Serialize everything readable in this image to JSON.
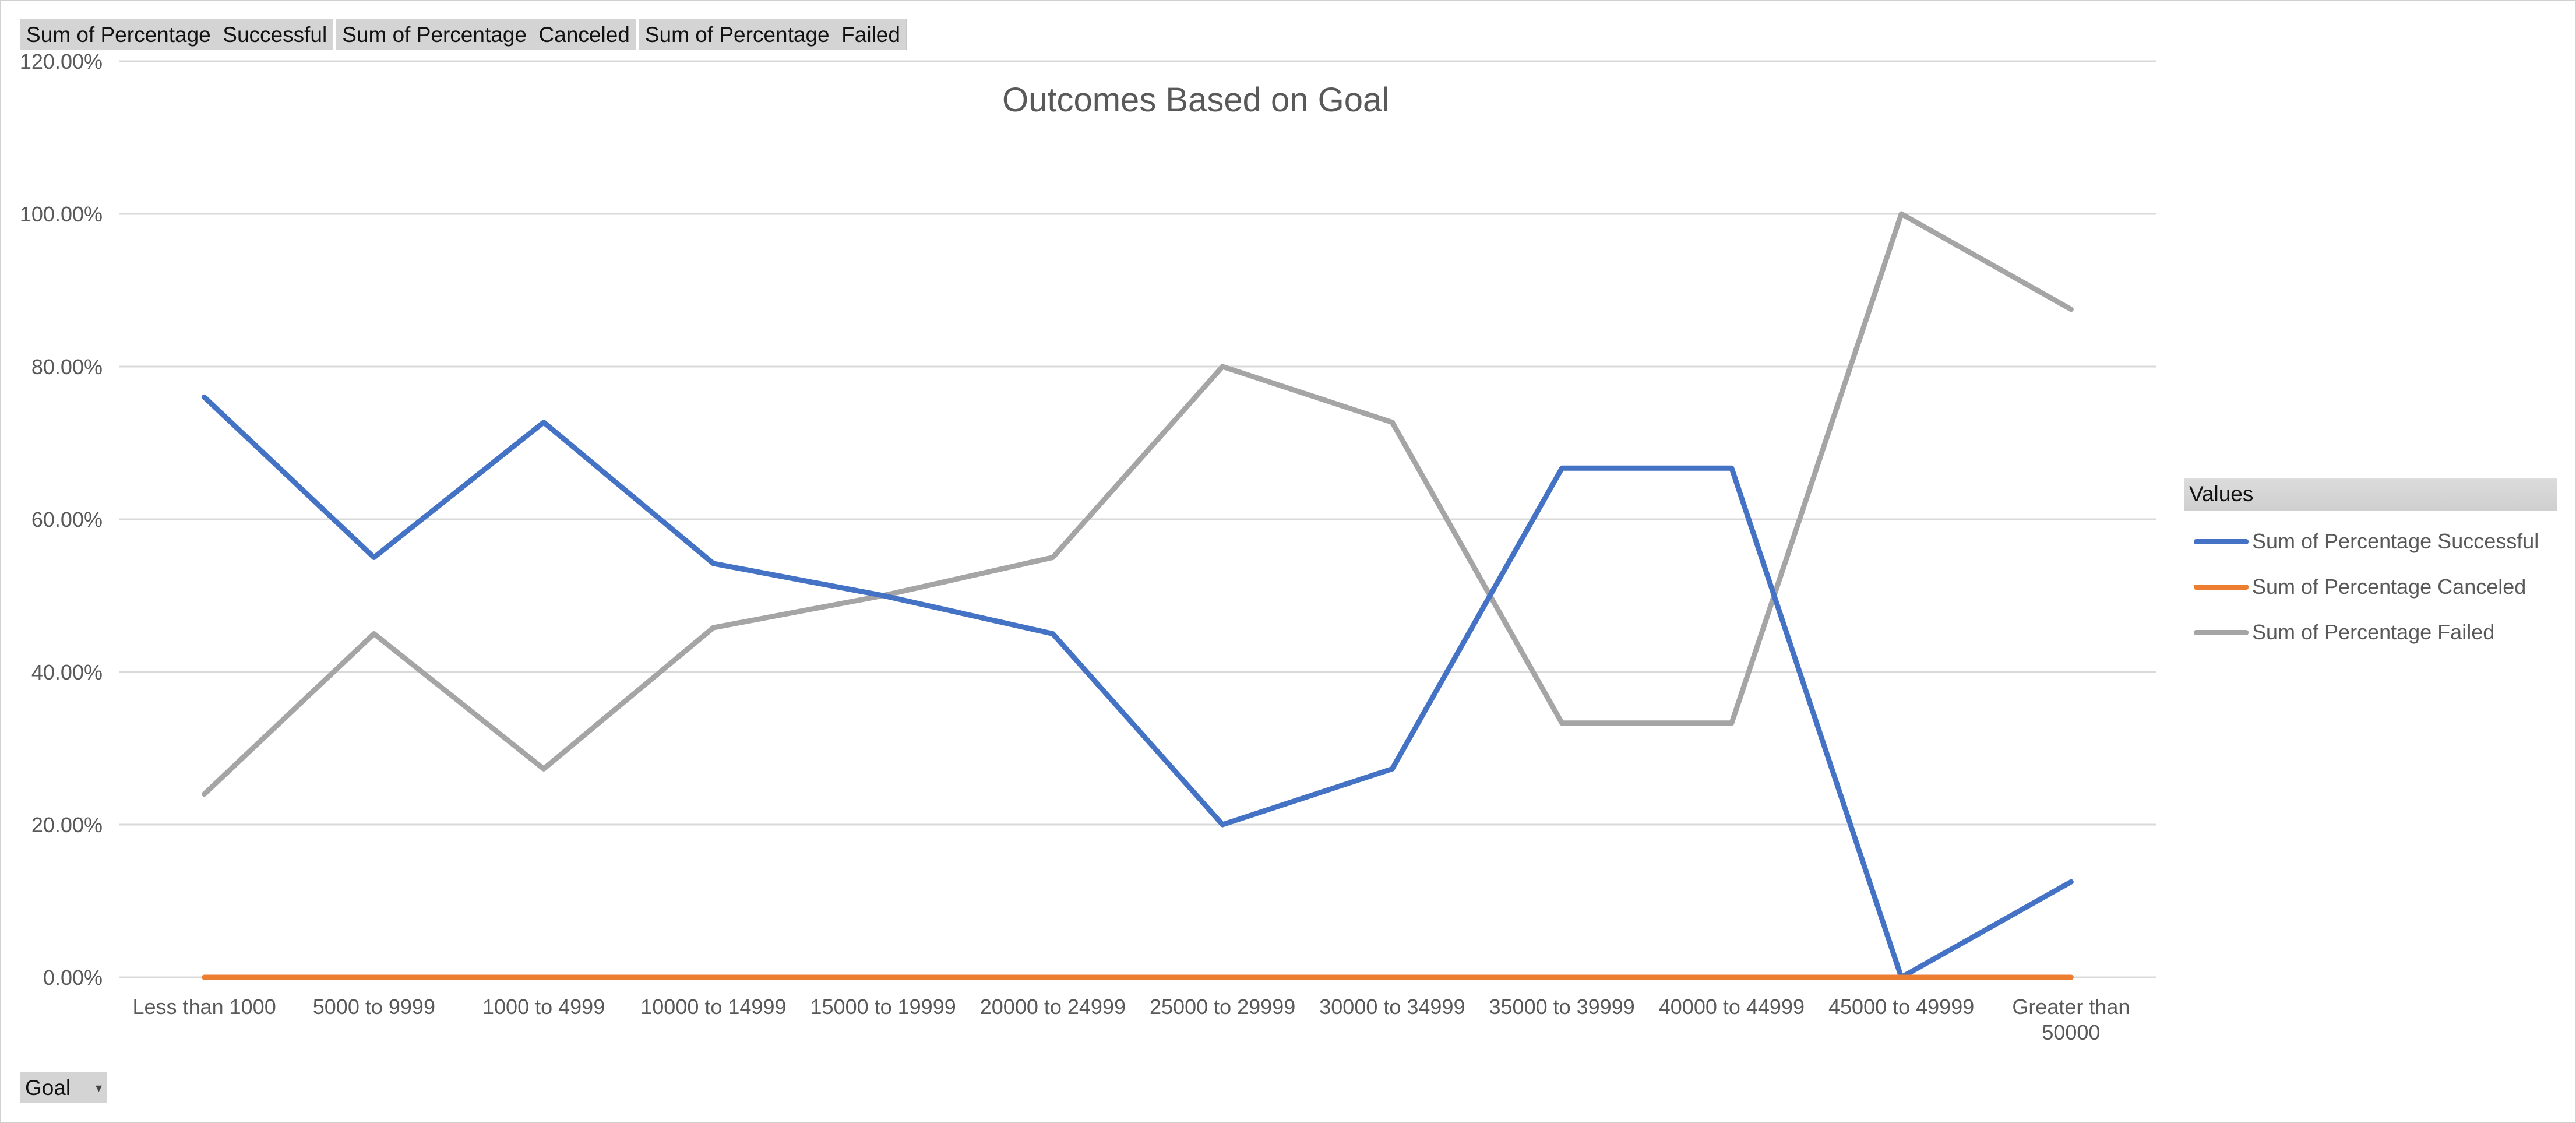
{
  "field_buttons": [
    "Sum of Percentage  Successful",
    "Sum of Percentage  Canceled",
    "Sum of Percentage  Failed"
  ],
  "axis_field": {
    "label": "Goal",
    "icon": "dropdown-arrow-icon"
  },
  "legend": {
    "header": "Values"
  },
  "colors": {
    "successful": "#4472C4",
    "canceled": "#ED7D31",
    "failed": "#A5A5A5"
  },
  "chart_data": {
    "type": "line",
    "title": "Outcomes Based on Goal",
    "categories": [
      "Less than 1000",
      "5000 to 9999",
      "1000 to 4999",
      "10000 to 14999",
      "15000 to 19999",
      "20000 to 24999",
      "25000 to 29999",
      "30000 to 34999",
      "35000 to 39999",
      "40000 to 44999",
      "45000 to 49999",
      "Greater than 50000"
    ],
    "ylim": [
      0,
      1.2
    ],
    "yticks": [
      "0.00%",
      "20.00%",
      "40.00%",
      "60.00%",
      "80.00%",
      "100.00%",
      "120.00%"
    ],
    "grid": true,
    "legend_position": "right",
    "series": [
      {
        "name": "Sum of Percentage Successful",
        "color": "#4472C4",
        "values": [
          0.76,
          0.55,
          0.727,
          0.542,
          0.5,
          0.45,
          0.2,
          0.273,
          0.667,
          0.667,
          0.0,
          0.125
        ]
      },
      {
        "name": "Sum of Percentage Canceled",
        "color": "#ED7D31",
        "values": [
          0,
          0,
          0,
          0,
          0,
          0,
          0,
          0,
          0,
          0,
          0,
          0
        ]
      },
      {
        "name": "Sum of Percentage Failed",
        "color": "#A5A5A5",
        "values": [
          0.24,
          0.45,
          0.273,
          0.458,
          0.5,
          0.55,
          0.8,
          0.727,
          0.333,
          0.333,
          1.0,
          0.875
        ]
      }
    ]
  }
}
